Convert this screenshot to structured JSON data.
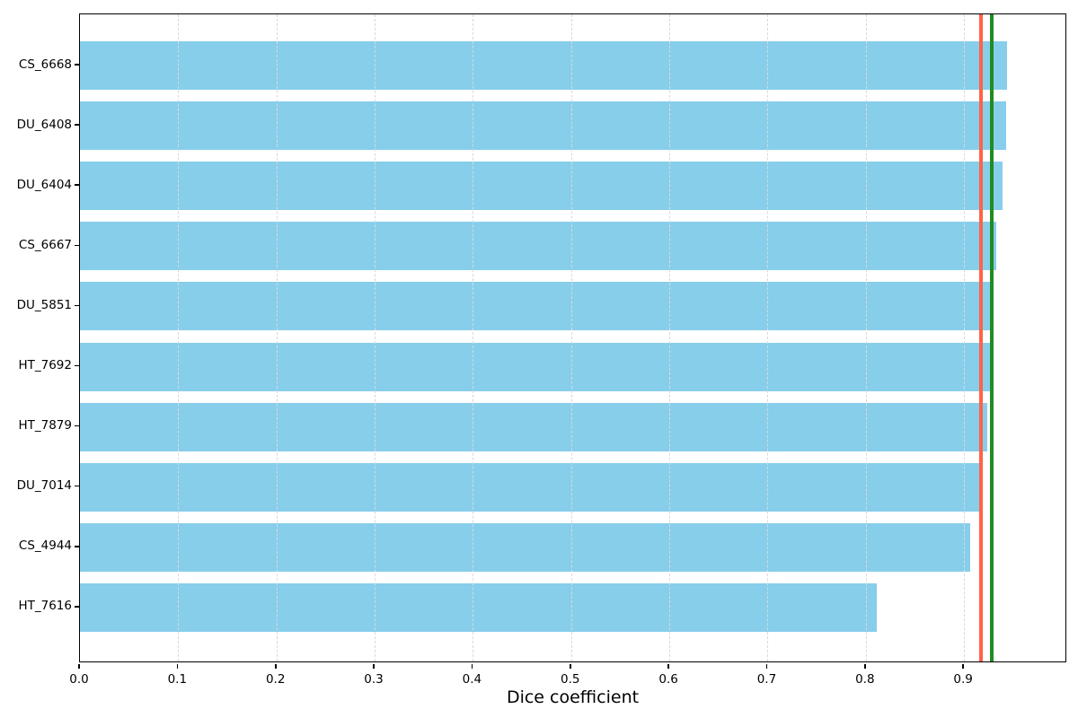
{
  "chart_data": {
    "type": "bar",
    "orientation": "horizontal",
    "title": "",
    "xlabel": "Dice coefficient",
    "ylabel": "",
    "categories": [
      "CS_6668",
      "DU_6408",
      "DU_6404",
      "CS_6667",
      "DU_5851",
      "HT_7692",
      "HT_7879",
      "DU_7014",
      "CS_4944",
      "HT_7616"
    ],
    "values": [
      0.944,
      0.943,
      0.939,
      0.933,
      0.927,
      0.926,
      0.924,
      0.915,
      0.906,
      0.811
    ],
    "xlim": [
      0,
      1.005
    ],
    "xtick_labels": [
      "0.0",
      "0.1",
      "0.2",
      "0.3",
      "0.4",
      "0.5",
      "0.6",
      "0.7",
      "0.8",
      "0.9"
    ],
    "xtick_values": [
      0.0,
      0.1,
      0.2,
      0.3,
      0.4,
      0.5,
      0.6,
      0.7,
      0.8,
      0.9
    ],
    "grid": {
      "axis": "x",
      "style": "dashed",
      "color": "#d9d9d9",
      "above_bars": true
    },
    "bar_color": "#87CEEB",
    "reference_lines": [
      {
        "name": "mean-line",
        "value": 0.917,
        "color": "#FF6347"
      },
      {
        "name": "median-line",
        "value": 0.928,
        "color": "#228B22"
      }
    ],
    "legend": "none"
  }
}
